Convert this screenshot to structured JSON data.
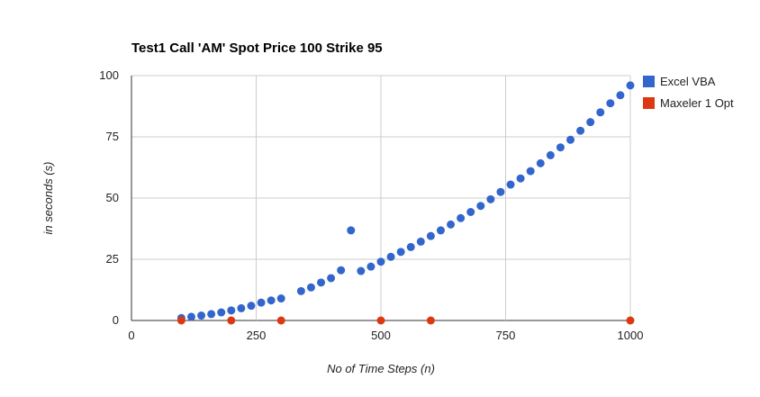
{
  "chart_data": {
    "type": "scatter",
    "title": "Test1 Call 'AM' Spot Price 100 Strike 95",
    "xlabel": "No of Time Steps (n)",
    "ylabel": "in seconds (s)",
    "xlim": [
      0,
      1000
    ],
    "ylim": [
      0,
      100
    ],
    "xticks": [
      0,
      250,
      500,
      750,
      1000
    ],
    "yticks": [
      0,
      25,
      50,
      75,
      100
    ],
    "x_tick_labels": [
      "0",
      "250",
      "500",
      "750",
      "1000"
    ],
    "y_tick_labels": [
      "0",
      "25",
      "50",
      "75",
      "100"
    ],
    "grid": true,
    "legend_position": "right",
    "series": [
      {
        "name": "Excel VBA",
        "color": "#3366cc",
        "points": [
          [
            100,
            1.0
          ],
          [
            120,
            1.5
          ],
          [
            140,
            2.0
          ],
          [
            160,
            2.6
          ],
          [
            180,
            3.3
          ],
          [
            200,
            4.1
          ],
          [
            220,
            5.0
          ],
          [
            240,
            6.0
          ],
          [
            260,
            7.3
          ],
          [
            280,
            8.2
          ],
          [
            300,
            9.0
          ],
          [
            340,
            12.0
          ],
          [
            360,
            13.5
          ],
          [
            380,
            15.5
          ],
          [
            400,
            17.3
          ],
          [
            420,
            20.5
          ],
          [
            440,
            36.8
          ],
          [
            460,
            20.2
          ],
          [
            480,
            22.0
          ],
          [
            500,
            24.0
          ],
          [
            520,
            26.0
          ],
          [
            540,
            28.0
          ],
          [
            560,
            30.0
          ],
          [
            580,
            32.2
          ],
          [
            600,
            34.5
          ],
          [
            620,
            36.8
          ],
          [
            640,
            39.2
          ],
          [
            660,
            41.8
          ],
          [
            680,
            44.3
          ],
          [
            700,
            46.8
          ],
          [
            720,
            49.5
          ],
          [
            740,
            52.5
          ],
          [
            760,
            55.5
          ],
          [
            780,
            58.0
          ],
          [
            800,
            61.0
          ],
          [
            820,
            64.2
          ],
          [
            840,
            67.5
          ],
          [
            860,
            70.7
          ],
          [
            880,
            73.8
          ],
          [
            900,
            77.5
          ],
          [
            920,
            81.0
          ],
          [
            940,
            85.0
          ],
          [
            960,
            88.7
          ],
          [
            980,
            92.0
          ],
          [
            1000,
            96.0
          ]
        ]
      },
      {
        "name": "Maxeler 1 Opt",
        "color": "#dc3912",
        "points": [
          [
            100,
            0
          ],
          [
            200,
            0
          ],
          [
            300,
            0
          ],
          [
            500,
            0
          ],
          [
            600,
            0
          ],
          [
            1000,
            0
          ]
        ]
      }
    ]
  }
}
